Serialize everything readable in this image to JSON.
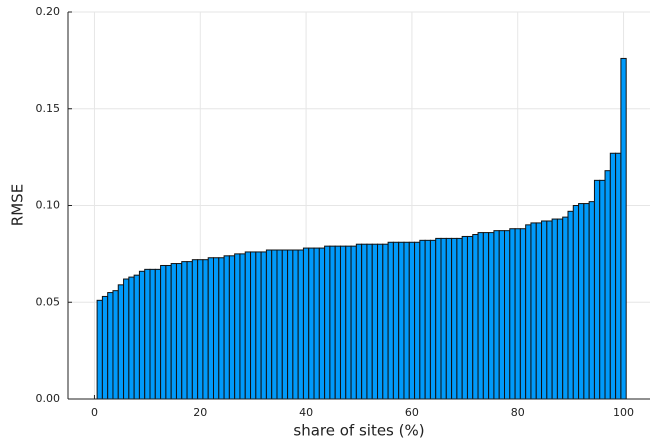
{
  "chart_data": {
    "type": "bar",
    "xlabel": "share of sites (%)",
    "ylabel": "RMSE",
    "x": [
      1,
      2,
      3,
      4,
      5,
      6,
      7,
      8,
      9,
      10,
      11,
      12,
      13,
      14,
      15,
      16,
      17,
      18,
      19,
      20,
      21,
      22,
      23,
      24,
      25,
      26,
      27,
      28,
      29,
      30,
      31,
      32,
      33,
      34,
      35,
      36,
      37,
      38,
      39,
      40,
      41,
      42,
      43,
      44,
      45,
      46,
      47,
      48,
      49,
      50,
      51,
      52,
      53,
      54,
      55,
      56,
      57,
      58,
      59,
      60,
      61,
      62,
      63,
      64,
      65,
      66,
      67,
      68,
      69,
      70,
      71,
      72,
      73,
      74,
      75,
      76,
      77,
      78,
      79,
      80,
      81,
      82,
      83,
      84,
      85,
      86,
      87,
      88,
      89,
      90,
      91,
      92,
      93,
      94,
      95,
      96,
      97,
      98,
      99,
      100
    ],
    "values": [
      0.051,
      0.053,
      0.055,
      0.056,
      0.059,
      0.062,
      0.063,
      0.064,
      0.066,
      0.067,
      0.067,
      0.067,
      0.069,
      0.069,
      0.07,
      0.07,
      0.071,
      0.071,
      0.072,
      0.072,
      0.072,
      0.073,
      0.073,
      0.073,
      0.074,
      0.074,
      0.075,
      0.075,
      0.076,
      0.076,
      0.076,
      0.076,
      0.077,
      0.077,
      0.077,
      0.077,
      0.077,
      0.077,
      0.077,
      0.078,
      0.078,
      0.078,
      0.078,
      0.079,
      0.079,
      0.079,
      0.079,
      0.079,
      0.079,
      0.08,
      0.08,
      0.08,
      0.08,
      0.08,
      0.08,
      0.081,
      0.081,
      0.081,
      0.081,
      0.081,
      0.081,
      0.082,
      0.082,
      0.082,
      0.083,
      0.083,
      0.083,
      0.083,
      0.083,
      0.084,
      0.084,
      0.085,
      0.086,
      0.086,
      0.086,
      0.087,
      0.087,
      0.087,
      0.088,
      0.088,
      0.088,
      0.09,
      0.091,
      0.091,
      0.092,
      0.092,
      0.093,
      0.093,
      0.094,
      0.097,
      0.1,
      0.101,
      0.101,
      0.102,
      0.113,
      0.113,
      0.118,
      0.127,
      0.127,
      0.176
    ],
    "color": "#009afa",
    "xlim": [
      -5,
      105
    ],
    "xticks": [
      0,
      20,
      40,
      60,
      80,
      100
    ],
    "ylim": [
      0,
      0.2
    ],
    "yticks": [
      {
        "value": 0,
        "label": "0.00"
      },
      {
        "value": 0.05,
        "label": "0.05"
      },
      {
        "value": 0.1,
        "label": "0.10"
      },
      {
        "value": 0.15,
        "label": "0.15"
      },
      {
        "value": 0.2,
        "label": "0.20"
      }
    ],
    "grid": true
  }
}
